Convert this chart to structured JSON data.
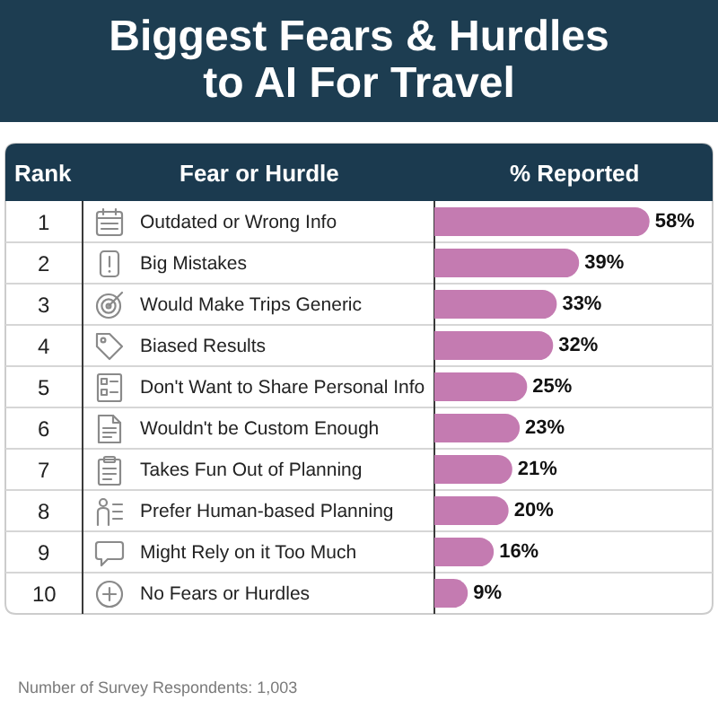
{
  "chart_data": {
    "type": "bar",
    "orientation": "horizontal",
    "title": "Biggest Fears & Hurdles to AI For Travel",
    "xlabel": "% Reported",
    "ylabel": "Fear or Hurdle",
    "categories": [
      "Outdated or Wrong Info",
      "Big Mistakes",
      "Would Make Trips Generic",
      "Biased Results",
      "Don't Want to Share Personal Info",
      "Wouldn't be Custom Enough",
      "Takes Fun Out of Planning",
      "Prefer Human-based Planning",
      "Might Rely on it Too Much",
      "No Fears or Hurdles"
    ],
    "values": [
      58,
      39,
      33,
      32,
      25,
      23,
      21,
      20,
      16,
      9
    ],
    "value_labels": [
      "58%",
      "39%",
      "33%",
      "32%",
      "25%",
      "23%",
      "21%",
      "20%",
      "16%",
      "9%"
    ],
    "color": "#c47bb1",
    "xlim": [
      0,
      75
    ],
    "tick_labels": "y",
    "annotations": [
      "Rank",
      "1",
      "2",
      "3",
      "4",
      "5",
      "6",
      "7",
      "8",
      "9",
      "10",
      "Number of Survey Respondents: 1,003"
    ]
  }
}
